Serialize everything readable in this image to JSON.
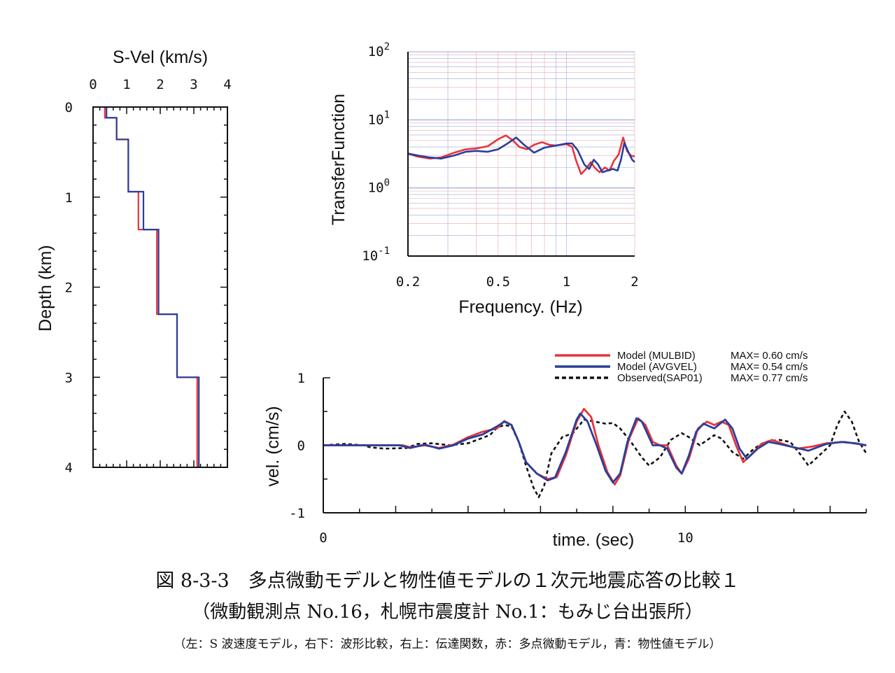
{
  "colors": {
    "model_mulbid": "#e8343c",
    "model_avgvel": "#2a3f9c",
    "observed": "#111111",
    "grid_red": "#e9a7ae",
    "grid_blue": "#9ea7d8"
  },
  "chart_data": [
    {
      "id": "velocity_profile",
      "type": "line",
      "xlabel": "S-Vel (km/s)",
      "ylabel": "Depth (km)",
      "xlim": [
        0,
        4
      ],
      "ylim": [
        4,
        0
      ],
      "x_ticks": [
        "0",
        "1",
        "2",
        "3",
        "4"
      ],
      "y_ticks": [
        "0",
        "1",
        "2",
        "3",
        "4"
      ],
      "series": [
        {
          "key": "mulbid",
          "steps": [
            [
              0.35,
              0.0
            ],
            [
              0.35,
              0.12
            ],
            [
              0.7,
              0.12
            ],
            [
              0.7,
              0.36
            ],
            [
              1.05,
              0.36
            ],
            [
              1.05,
              0.94
            ],
            [
              1.35,
              0.94
            ],
            [
              1.35,
              1.36
            ],
            [
              1.9,
              1.36
            ],
            [
              1.9,
              2.3
            ],
            [
              2.5,
              2.3
            ],
            [
              2.5,
              3.0
            ],
            [
              3.1,
              3.0
            ],
            [
              3.1,
              4.0
            ]
          ]
        },
        {
          "key": "avgvel",
          "steps": [
            [
              0.4,
              0.0
            ],
            [
              0.4,
              0.12
            ],
            [
              0.7,
              0.12
            ],
            [
              0.7,
              0.36
            ],
            [
              1.05,
              0.36
            ],
            [
              1.05,
              0.94
            ],
            [
              1.5,
              0.94
            ],
            [
              1.5,
              1.36
            ],
            [
              1.95,
              1.36
            ],
            [
              1.95,
              2.3
            ],
            [
              2.5,
              2.3
            ],
            [
              2.5,
              3.0
            ],
            [
              3.15,
              3.0
            ],
            [
              3.15,
              4.0
            ]
          ]
        }
      ]
    },
    {
      "id": "transfer_function",
      "type": "line",
      "xlabel": "Frequency. (Hz)",
      "ylabel": "TransferFunction",
      "x_scale": "log",
      "y_scale": "log",
      "xlim": [
        0.2,
        2
      ],
      "ylim": [
        0.1,
        100
      ],
      "x_ticks": [
        {
          "v": 0.2,
          "label": "0.2"
        },
        {
          "v": 0.5,
          "label": "0.5"
        },
        {
          "v": 1,
          "label": "1"
        },
        {
          "v": 2,
          "label": "2"
        }
      ],
      "y_ticks": [
        {
          "v": 0.1,
          "base": "10",
          "exp": "-1"
        },
        {
          "v": 1,
          "base": "10",
          "exp": "0"
        },
        {
          "v": 10,
          "base": "10",
          "exp": "1"
        },
        {
          "v": 100,
          "base": "10",
          "exp": "2"
        }
      ],
      "grid": true,
      "series": [
        {
          "key": "mulbid",
          "points": [
            [
              0.2,
              3.2
            ],
            [
              0.22,
              2.9
            ],
            [
              0.25,
              2.7
            ],
            [
              0.28,
              2.8
            ],
            [
              0.32,
              3.3
            ],
            [
              0.36,
              3.7
            ],
            [
              0.4,
              3.8
            ],
            [
              0.45,
              4.1
            ],
            [
              0.5,
              5.2
            ],
            [
              0.54,
              5.9
            ],
            [
              0.58,
              5.0
            ],
            [
              0.62,
              4.0
            ],
            [
              0.67,
              3.7
            ],
            [
              0.72,
              4.3
            ],
            [
              0.78,
              4.7
            ],
            [
              0.84,
              4.3
            ],
            [
              0.9,
              4.2
            ],
            [
              1.0,
              4.4
            ],
            [
              1.06,
              4.0
            ],
            [
              1.1,
              2.6
            ],
            [
              1.16,
              1.6
            ],
            [
              1.22,
              1.9
            ],
            [
              1.28,
              2.4
            ],
            [
              1.33,
              2.0
            ],
            [
              1.4,
              1.7
            ],
            [
              1.48,
              2.0
            ],
            [
              1.55,
              1.8
            ],
            [
              1.62,
              2.5
            ],
            [
              1.7,
              3.1
            ],
            [
              1.78,
              5.5
            ],
            [
              1.85,
              3.5
            ],
            [
              1.92,
              3.0
            ],
            [
              2.0,
              2.9
            ]
          ]
        },
        {
          "key": "avgvel",
          "points": [
            [
              0.2,
              3.2
            ],
            [
              0.22,
              3.0
            ],
            [
              0.25,
              2.8
            ],
            [
              0.28,
              2.7
            ],
            [
              0.32,
              3.0
            ],
            [
              0.36,
              3.4
            ],
            [
              0.4,
              3.5
            ],
            [
              0.45,
              3.4
            ],
            [
              0.5,
              3.7
            ],
            [
              0.55,
              4.5
            ],
            [
              0.6,
              5.5
            ],
            [
              0.65,
              4.3
            ],
            [
              0.72,
              3.3
            ],
            [
              0.8,
              3.9
            ],
            [
              0.9,
              4.2
            ],
            [
              1.0,
              4.5
            ],
            [
              1.06,
              4.5
            ],
            [
              1.12,
              3.6
            ],
            [
              1.2,
              2.2
            ],
            [
              1.26,
              1.9
            ],
            [
              1.32,
              2.6
            ],
            [
              1.38,
              2.2
            ],
            [
              1.44,
              1.7
            ],
            [
              1.52,
              1.8
            ],
            [
              1.6,
              1.9
            ],
            [
              1.68,
              1.8
            ],
            [
              1.74,
              2.6
            ],
            [
              1.8,
              4.6
            ],
            [
              1.88,
              3.3
            ],
            [
              1.95,
              2.6
            ],
            [
              2.0,
              2.4
            ]
          ]
        }
      ]
    },
    {
      "id": "waveform",
      "type": "line",
      "xlabel": "time. (sec)",
      "ylabel": "vel. (cm/s)",
      "xlim": [
        0,
        15
      ],
      "ylim": [
        -1,
        1
      ],
      "x_ticks": [
        {
          "v": 0,
          "label": "0"
        },
        {
          "v": 10,
          "label": "10"
        }
      ],
      "y_ticks": [
        {
          "v": -1,
          "label": "-1"
        },
        {
          "v": 0,
          "label": "0"
        },
        {
          "v": 1,
          "label": "1"
        }
      ],
      "legend": "top-right",
      "series": [
        {
          "key": "mulbid",
          "name": "Model (MULBID)",
          "max_label": "MAX= 0.60 cm/s",
          "points": [
            [
              0,
              0
            ],
            [
              1.5,
              0
            ],
            [
              2.2,
              0.0
            ],
            [
              2.4,
              -0.03
            ],
            [
              2.8,
              0.0
            ],
            [
              3.2,
              -0.04
            ],
            [
              3.6,
              0.01
            ],
            [
              4.0,
              0.12
            ],
            [
              4.4,
              0.2
            ],
            [
              4.8,
              0.25
            ],
            [
              5.0,
              0.36
            ],
            [
              5.2,
              0.3
            ],
            [
              5.4,
              0.05
            ],
            [
              5.6,
              -0.25
            ],
            [
              5.9,
              -0.42
            ],
            [
              6.2,
              -0.5
            ],
            [
              6.45,
              -0.47
            ],
            [
              6.7,
              -0.15
            ],
            [
              7.0,
              0.35
            ],
            [
              7.2,
              0.54
            ],
            [
              7.4,
              0.42
            ],
            [
              7.6,
              0.0
            ],
            [
              7.85,
              -0.4
            ],
            [
              8.05,
              -0.58
            ],
            [
              8.2,
              -0.45
            ],
            [
              8.45,
              0.1
            ],
            [
              8.7,
              0.4
            ],
            [
              8.9,
              0.3
            ],
            [
              9.1,
              0.05
            ],
            [
              9.3,
              0.0
            ],
            [
              9.5,
              0.0
            ],
            [
              9.75,
              -0.3
            ],
            [
              9.9,
              -0.42
            ],
            [
              10.1,
              -0.2
            ],
            [
              10.35,
              0.25
            ],
            [
              10.6,
              0.35
            ],
            [
              10.8,
              0.3
            ],
            [
              11.0,
              0.35
            ],
            [
              11.2,
              0.3
            ],
            [
              11.4,
              0.0
            ],
            [
              11.6,
              -0.25
            ],
            [
              11.8,
              -0.15
            ],
            [
              12.1,
              0.02
            ],
            [
              12.4,
              0.08
            ],
            [
              12.7,
              0.02
            ],
            [
              13.1,
              -0.05
            ],
            [
              13.5,
              -0.02
            ],
            [
              13.9,
              0.03
            ],
            [
              14.4,
              0.05
            ],
            [
              15.0,
              0.0
            ]
          ]
        },
        {
          "key": "avgvel",
          "name": "Model (AVGVEL)",
          "max_label": "MAX= 0.54 cm/s",
          "points": [
            [
              0,
              0
            ],
            [
              2.1,
              0.0
            ],
            [
              2.4,
              -0.04
            ],
            [
              2.8,
              0.01
            ],
            [
              3.2,
              -0.05
            ],
            [
              3.6,
              0.0
            ],
            [
              4.0,
              0.1
            ],
            [
              4.4,
              0.16
            ],
            [
              4.8,
              0.28
            ],
            [
              5.0,
              0.35
            ],
            [
              5.2,
              0.3
            ],
            [
              5.4,
              0.05
            ],
            [
              5.6,
              -0.25
            ],
            [
              5.9,
              -0.42
            ],
            [
              6.2,
              -0.52
            ],
            [
              6.4,
              -0.48
            ],
            [
              6.7,
              -0.1
            ],
            [
              7.0,
              0.38
            ],
            [
              7.1,
              0.47
            ],
            [
              7.3,
              0.35
            ],
            [
              7.55,
              0.0
            ],
            [
              7.8,
              -0.38
            ],
            [
              8.0,
              -0.55
            ],
            [
              8.2,
              -0.42
            ],
            [
              8.4,
              0.05
            ],
            [
              8.65,
              0.4
            ],
            [
              8.8,
              0.35
            ],
            [
              9.1,
              0.0
            ],
            [
              9.3,
              0.0
            ],
            [
              9.5,
              -0.05
            ],
            [
              9.75,
              -0.33
            ],
            [
              9.9,
              -0.42
            ],
            [
              10.1,
              -0.15
            ],
            [
              10.3,
              0.2
            ],
            [
              10.5,
              0.32
            ],
            [
              10.8,
              0.25
            ],
            [
              11.1,
              0.38
            ],
            [
              11.3,
              0.25
            ],
            [
              11.5,
              -0.05
            ],
            [
              11.7,
              -0.2
            ],
            [
              12.0,
              -0.05
            ],
            [
              12.3,
              0.05
            ],
            [
              12.6,
              0.02
            ],
            [
              13.0,
              -0.03
            ],
            [
              13.4,
              -0.08
            ],
            [
              13.9,
              0.02
            ],
            [
              14.3,
              0.05
            ],
            [
              14.7,
              0.03
            ],
            [
              15.0,
              0.0
            ]
          ]
        },
        {
          "key": "observed",
          "name": "Observed(SAP01)",
          "max_label": "MAX= 0.77 cm/s",
          "points": [
            [
              0,
              0.0
            ],
            [
              0.6,
              0.02
            ],
            [
              1.1,
              0.0
            ],
            [
              1.3,
              -0.03
            ],
            [
              1.7,
              -0.05
            ],
            [
              2.3,
              -0.04
            ],
            [
              2.6,
              0.02
            ],
            [
              3.0,
              0.03
            ],
            [
              3.5,
              0.0
            ],
            [
              4.0,
              0.03
            ],
            [
              4.6,
              0.15
            ],
            [
              4.8,
              0.26
            ],
            [
              5.0,
              0.3
            ],
            [
              5.2,
              0.28
            ],
            [
              5.4,
              0.05
            ],
            [
              5.6,
              -0.3
            ],
            [
              5.8,
              -0.62
            ],
            [
              5.95,
              -0.77
            ],
            [
              6.1,
              -0.6
            ],
            [
              6.3,
              -0.12
            ],
            [
              6.6,
              0.12
            ],
            [
              6.9,
              0.18
            ],
            [
              7.2,
              0.38
            ],
            [
              7.5,
              0.35
            ],
            [
              7.8,
              0.32
            ],
            [
              8.0,
              0.33
            ],
            [
              8.2,
              0.25
            ],
            [
              8.5,
              0.05
            ],
            [
              8.8,
              -0.18
            ],
            [
              9.0,
              -0.3
            ],
            [
              9.3,
              -0.18
            ],
            [
              9.6,
              0.08
            ],
            [
              9.9,
              0.18
            ],
            [
              10.1,
              0.12
            ],
            [
              10.4,
              0.0
            ],
            [
              10.8,
              0.15
            ],
            [
              11.0,
              0.1
            ],
            [
              11.3,
              -0.1
            ],
            [
              11.6,
              -0.2
            ],
            [
              11.9,
              -0.05
            ],
            [
              12.2,
              0.05
            ],
            [
              12.6,
              0.08
            ],
            [
              12.9,
              0.05
            ],
            [
              13.2,
              -0.15
            ],
            [
              13.4,
              -0.3
            ],
            [
              13.7,
              -0.15
            ],
            [
              14.0,
              0.0
            ],
            [
              14.2,
              0.3
            ],
            [
              14.4,
              0.5
            ],
            [
              14.6,
              0.35
            ],
            [
              14.8,
              0.05
            ],
            [
              15.0,
              -0.12
            ]
          ]
        }
      ]
    }
  ],
  "caption": {
    "line1": "図 8-3-3　多点微動モデルと物性値モデルの１次元地震応答の比較１",
    "line2": "（微動観測点 No.16，札幌市震度計 No.1：もみじ台出張所）",
    "line3": "（左：S 波速度モデル，右下：波形比較，右上：伝達関数，赤：多点微動モデル，青：物性値モデル）"
  }
}
